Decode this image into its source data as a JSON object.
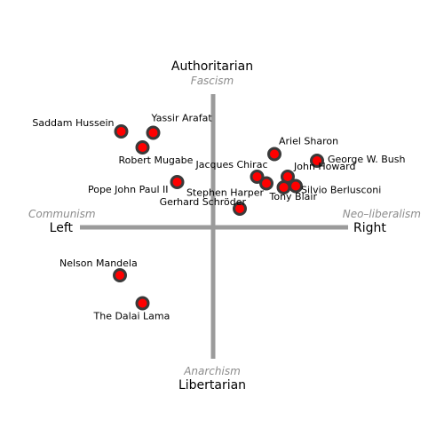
{
  "axes": {
    "top": {
      "title": "Authoritarian",
      "subtitle": "Fascism"
    },
    "bottom": {
      "title": "Libertarian",
      "subtitle": "Anarchism"
    },
    "left": {
      "title": "Left",
      "subtitle": "Communism"
    },
    "right": {
      "title": "Right",
      "subtitle": "Neo–liberalism"
    }
  },
  "colors": {
    "axis": "#9b9b9b",
    "dot_fill": "#ff0000",
    "dot_ring": "#3a3a3a",
    "title": "#000000",
    "subtitle": "#8c8c8c"
  },
  "chart_data": {
    "type": "scatter",
    "xlabel": "",
    "ylabel": "",
    "xlim": [
      -10,
      10
    ],
    "ylim": [
      -10,
      10
    ],
    "grid": false,
    "points": [
      {
        "name": "Saddam Hussein",
        "x": -6.9,
        "y": 7.2
      },
      {
        "name": "Yassir Arafat",
        "x": -4.5,
        "y": 7.1
      },
      {
        "name": "Robert Mugabe",
        "x": -5.3,
        "y": 6.0
      },
      {
        "name": "Pope John Paul II",
        "x": -2.7,
        "y": 3.4
      },
      {
        "name": "Gerhard Schröder",
        "x": 2.0,
        "y": 1.4
      },
      {
        "name": "Ariel Sharon",
        "x": 4.6,
        "y": 5.5
      },
      {
        "name": "George W. Bush",
        "x": 7.8,
        "y": 5.0
      },
      {
        "name": "Jacques Chirac",
        "x": 3.3,
        "y": 3.8
      },
      {
        "name": "John Howard",
        "x": 5.6,
        "y": 3.8
      },
      {
        "name": "Stephen Harper",
        "x": 4.0,
        "y": 3.3
      },
      {
        "name": "Tony Blair",
        "x": 5.3,
        "y": 3.0
      },
      {
        "name": "Silvio Berlusconi",
        "x": 6.2,
        "y": 3.1
      },
      {
        "name": "Nelson Mandela",
        "x": -7.0,
        "y": -3.6
      },
      {
        "name": "The Dalai Lama",
        "x": -5.3,
        "y": -5.7
      }
    ]
  }
}
